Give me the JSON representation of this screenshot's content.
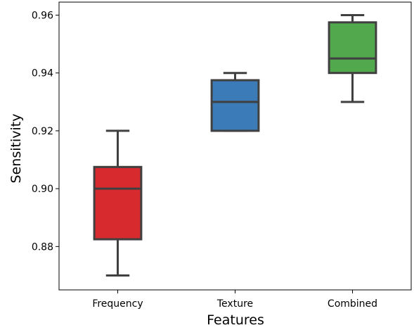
{
  "chart_data": {
    "type": "box",
    "title": "",
    "xlabel": "Features",
    "ylabel": "Sensitivity",
    "categories": [
      "Frequency",
      "Texture",
      "Combined"
    ],
    "boxes": [
      {
        "name": "Frequency",
        "whisker_low": 0.87,
        "q1": 0.8825,
        "median": 0.9,
        "q3": 0.9075,
        "whisker_high": 0.92,
        "color": "#d62a2e"
      },
      {
        "name": "Texture",
        "whisker_low": 0.92,
        "q1": 0.92,
        "median": 0.93,
        "q3": 0.9375,
        "whisker_high": 0.94,
        "color": "#3a7bb8"
      },
      {
        "name": "Combined",
        "whisker_low": 0.93,
        "q1": 0.94,
        "median": 0.945,
        "q3": 0.9575,
        "whisker_high": 0.96,
        "color": "#52a84c"
      }
    ],
    "ylim": [
      0.865,
      0.9645
    ],
    "yticks": [
      0.88,
      0.9,
      0.92,
      0.94,
      0.96
    ],
    "ytick_labels": [
      "0.88",
      "0.90",
      "0.92",
      "0.94",
      "0.96"
    ],
    "grid": false,
    "line_color": "#404040"
  }
}
